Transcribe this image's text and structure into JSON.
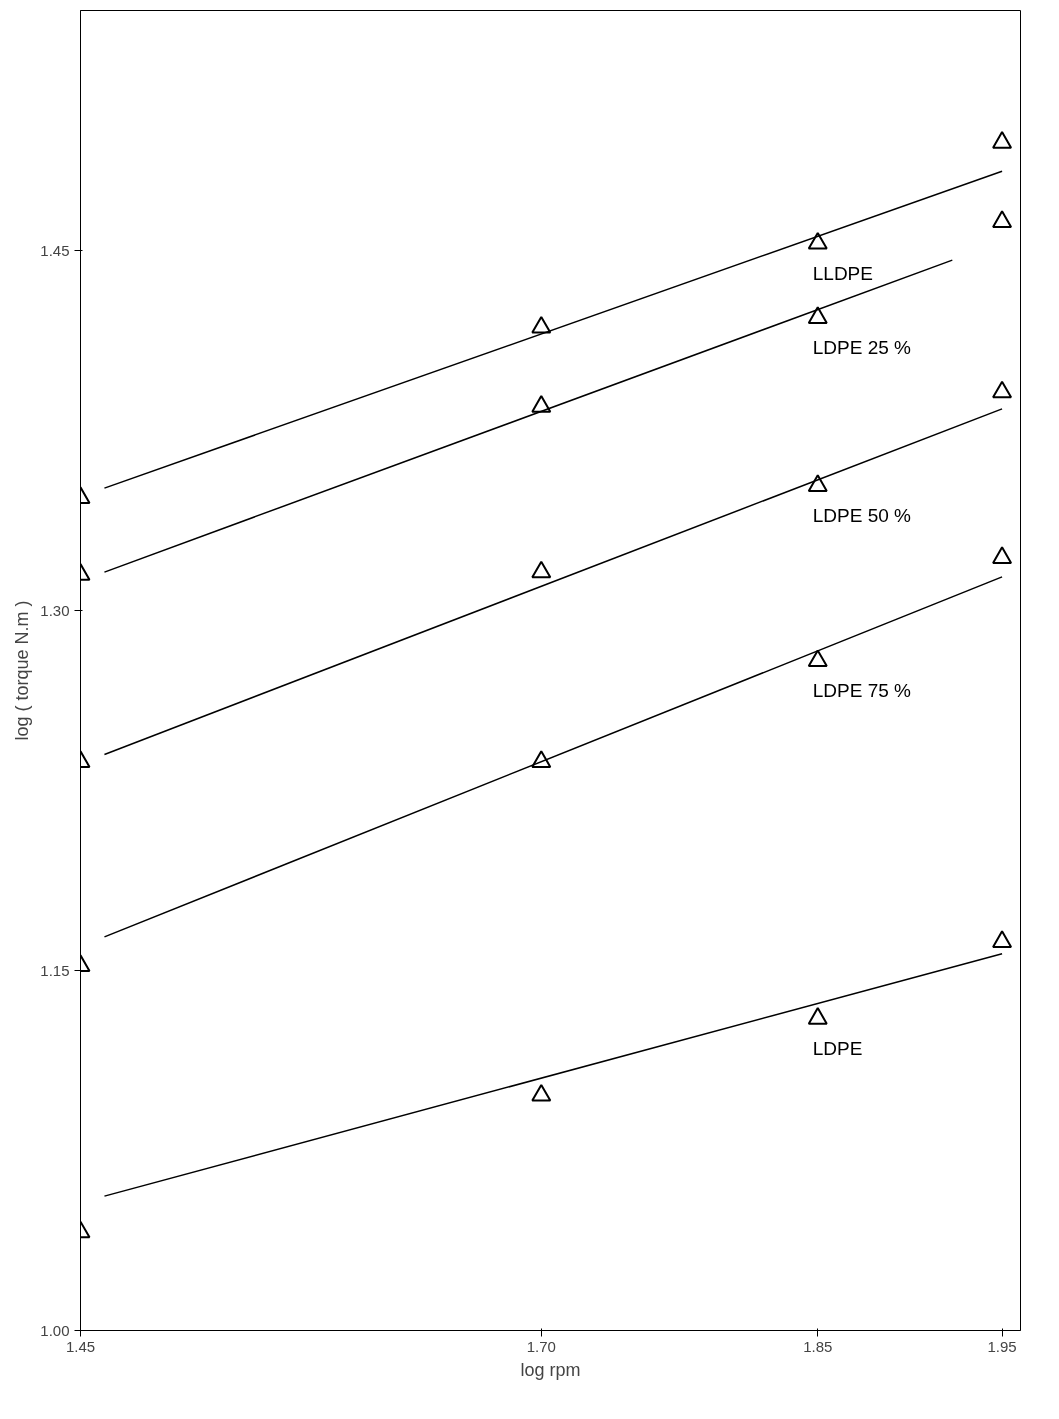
{
  "chart_data": {
    "type": "scatter",
    "xlabel": "log rpm",
    "ylabel": "log ( torque N.m )",
    "grid": false,
    "xlim": [
      1.45,
      1.96
    ],
    "ylim": [
      1.0,
      1.55
    ],
    "xticks": [
      {
        "value": 1.45,
        "label": "1.45"
      },
      {
        "value": 1.7,
        "label": "1.70"
      },
      {
        "value": 1.85,
        "label": "1.85"
      },
      {
        "value": 1.95,
        "label": "1.95"
      }
    ],
    "yticks": [
      {
        "value": 1.0,
        "label": "1.00"
      },
      {
        "value": 1.15,
        "label": "1.15"
      },
      {
        "value": 1.3,
        "label": "1.30"
      },
      {
        "value": 1.45,
        "label": "1.45"
      }
    ],
    "x": [
      1.45,
      1.7,
      1.85,
      1.95
    ],
    "series": [
      {
        "name": "LLDPE",
        "marker": "triangle",
        "color": "#000000",
        "values": [
          1.347,
          1.418,
          1.453,
          1.495
        ]
      },
      {
        "name": "LDPE 25 %",
        "marker": "triangle",
        "color": "#000000",
        "values": [
          1.315,
          1.385,
          1.422,
          1.462
        ]
      },
      {
        "name": "LDPE 50 %",
        "marker": "triangle",
        "color": "#000000",
        "values": [
          1.237,
          1.316,
          1.352,
          1.391
        ]
      },
      {
        "name": "LDPE 75 %",
        "marker": "triangle",
        "color": "#000000",
        "values": [
          1.152,
          1.237,
          1.279,
          1.322
        ]
      },
      {
        "name": "LDPE",
        "marker": "triangle",
        "color": "#000000",
        "values": [
          1.041,
          1.098,
          1.13,
          1.162
        ]
      },
      {
        "type": "line",
        "color": "#000000",
        "x": [
          1.463,
          1.95
        ],
        "values": [
          1.351,
          1.483
        ]
      },
      {
        "type": "line",
        "color": "#000000",
        "x": [
          1.463,
          1.923
        ],
        "values": [
          1.316,
          1.446
        ]
      },
      {
        "type": "line",
        "color": "#000000",
        "x": [
          1.463,
          1.95
        ],
        "values": [
          1.24,
          1.384
        ]
      },
      {
        "type": "line",
        "color": "#000000",
        "x": [
          1.463,
          1.95
        ],
        "values": [
          1.164,
          1.314
        ]
      },
      {
        "type": "line",
        "color": "#000000",
        "x": [
          1.463,
          1.95
        ],
        "values": [
          1.056,
          1.157
        ]
      }
    ]
  }
}
